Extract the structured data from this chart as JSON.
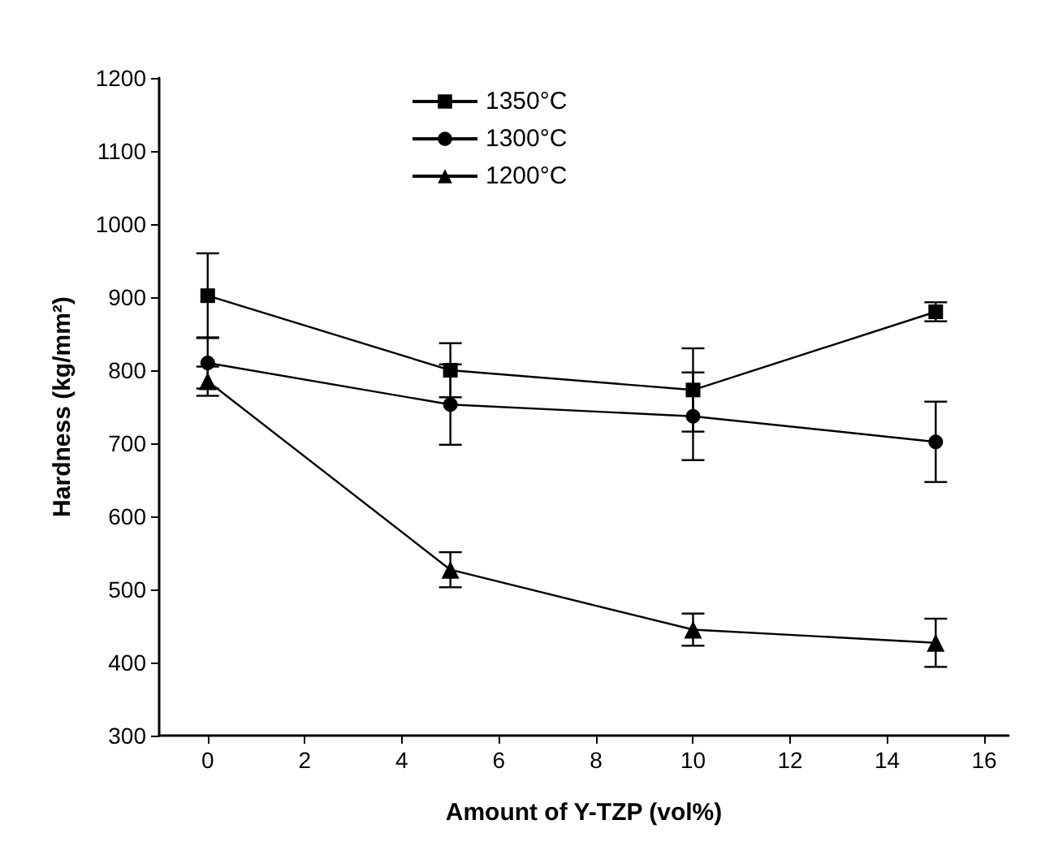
{
  "chart_data": {
    "type": "line",
    "xlabel": "Amount of Y-TZP (vol%)",
    "ylabel": "Hardness (kg/mm²)",
    "xlim": [
      -1,
      16.5
    ],
    "xticks": [
      0,
      2,
      4,
      6,
      8,
      10,
      12,
      14,
      16
    ],
    "ylim": [
      300,
      1200
    ],
    "yticks": [
      300,
      400,
      500,
      600,
      700,
      800,
      900,
      1000,
      1100,
      1200
    ],
    "x": [
      0,
      5,
      10,
      15
    ],
    "grid": false,
    "legend": "top left",
    "line_style": "solid",
    "series": [
      {
        "name": "1350°C",
        "color": "#000000",
        "marker": "square",
        "values": [
          902,
          800,
          773,
          880
        ],
        "errors": [
          58,
          37,
          57,
          13
        ]
      },
      {
        "name": "1300°C",
        "color": "#000000",
        "marker": "circle",
        "values": [
          810,
          753,
          737,
          702
        ],
        "errors": [
          35,
          55,
          60,
          55
        ]
      },
      {
        "name": "1200°C",
        "color": "#000000",
        "marker": "triangle",
        "values": [
          785,
          527,
          445,
          427
        ],
        "errors": [
          20,
          24,
          22,
          33
        ]
      }
    ]
  }
}
